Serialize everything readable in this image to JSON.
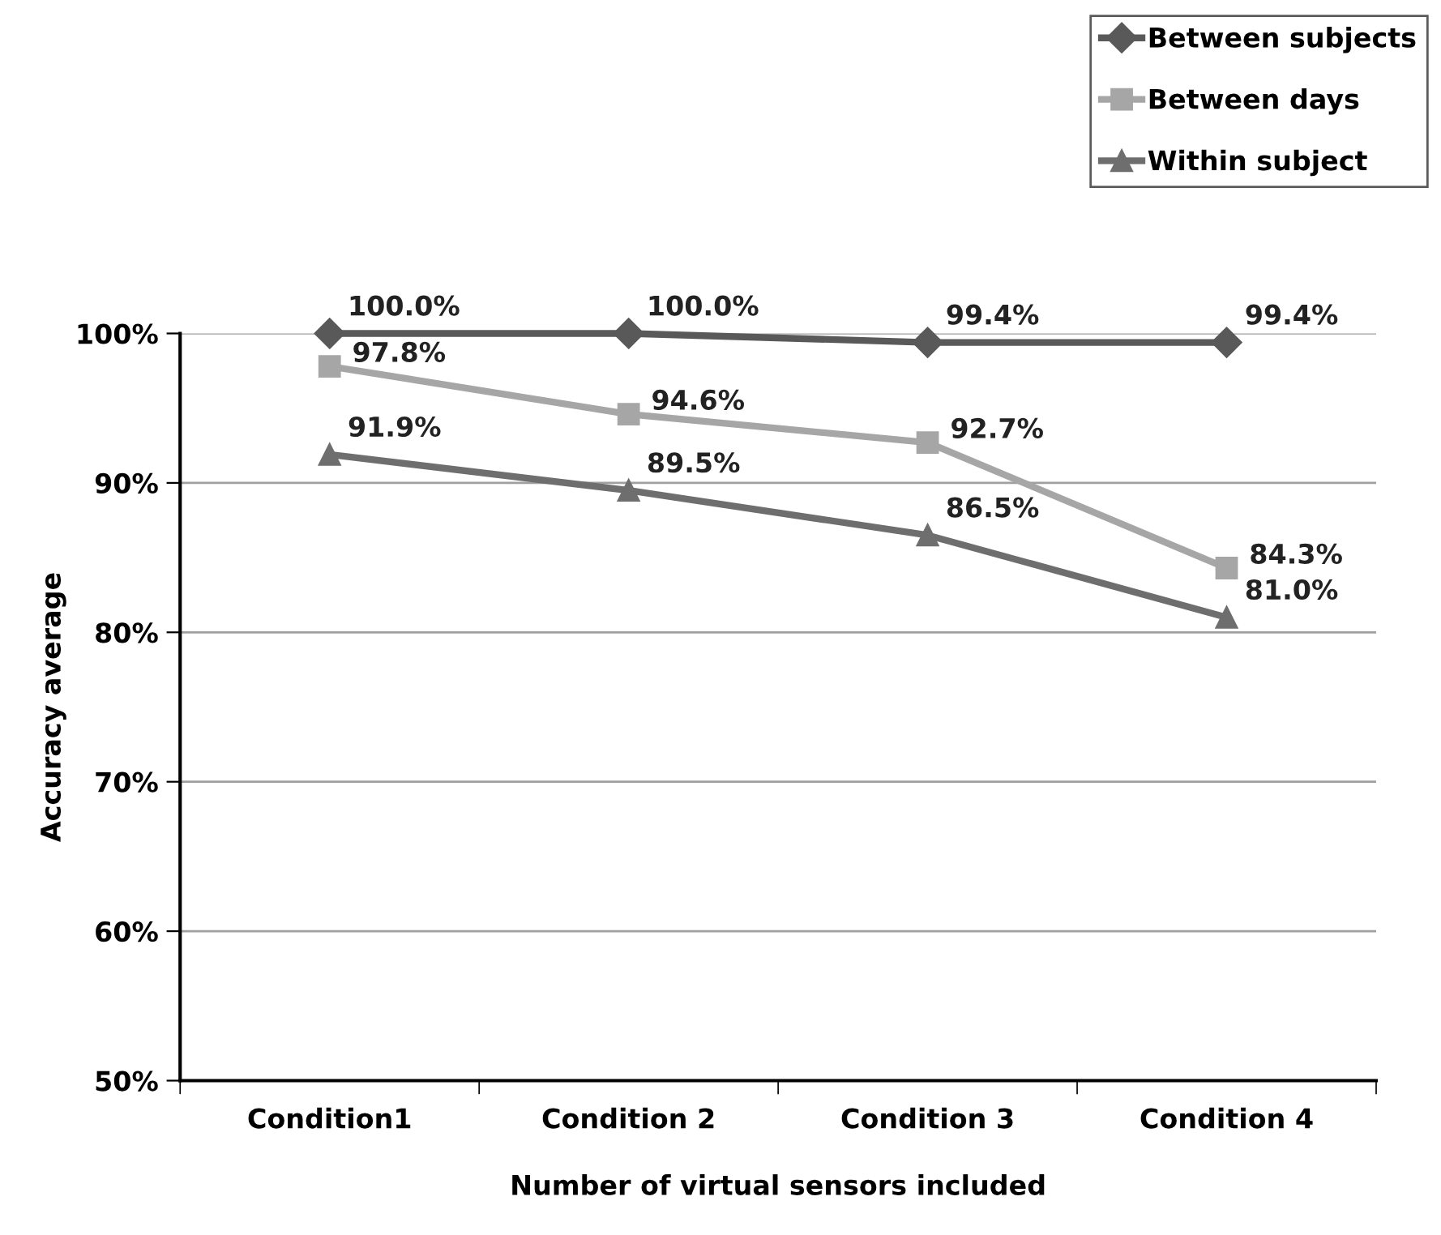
{
  "chart_data": {
    "type": "line",
    "xlabel": "Number of virtual sensors included",
    "ylabel": "Accuracy average",
    "categories": [
      "Condition1",
      "Condition 2",
      "Condition 3",
      "Condition 4"
    ],
    "series": [
      {
        "name": "Between subjects",
        "color": "#595959",
        "marker": "diamond",
        "values": [
          100.0,
          100.0,
          99.4,
          99.4
        ],
        "value_labels": [
          "100.0%",
          "100.0%",
          "99.4%",
          "99.4%"
        ]
      },
      {
        "name": "Between days",
        "color": "#a6a6a6",
        "marker": "square",
        "values": [
          97.8,
          94.6,
          92.7,
          84.3
        ],
        "value_labels": [
          "97.8%",
          "94.6%",
          "92.7%",
          "84.3%"
        ]
      },
      {
        "name": "Within subject",
        "color": "#6e6e6e",
        "marker": "triangle",
        "values": [
          91.9,
          89.5,
          86.5,
          81.0
        ],
        "value_labels": [
          "91.9%",
          "89.5%",
          "86.5%",
          "81.0%"
        ]
      }
    ],
    "ylim": [
      50,
      100
    ],
    "yticks": [
      {
        "value": 50,
        "label": "50%"
      },
      {
        "value": 60,
        "label": "60%"
      },
      {
        "value": 70,
        "label": "70%"
      },
      {
        "value": 80,
        "label": "80%"
      },
      {
        "value": 90,
        "label": "90%"
      },
      {
        "value": 100,
        "label": "100%"
      }
    ],
    "grid": "y",
    "legend": "top right",
    "line_style": "solid"
  }
}
